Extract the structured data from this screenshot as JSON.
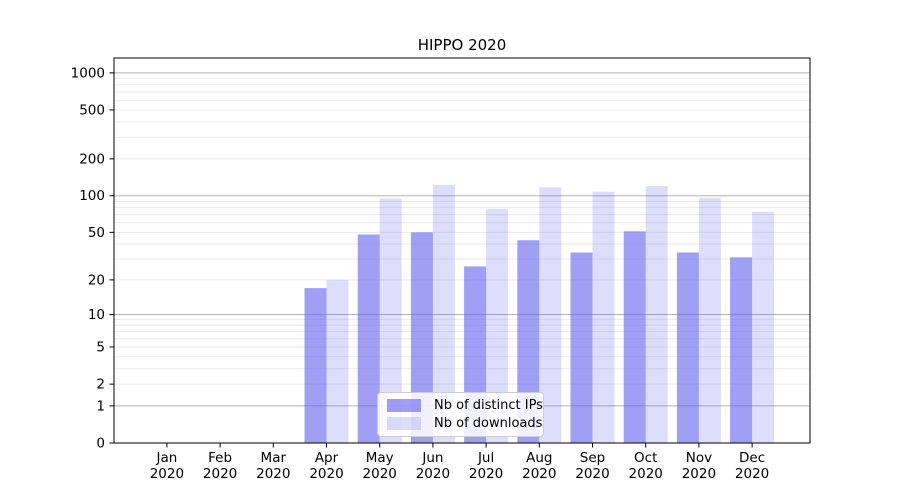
{
  "chart_data": {
    "type": "bar",
    "title": "HIPPO 2020",
    "year_label": "2020",
    "categories": [
      "Jan",
      "Feb",
      "Mar",
      "Apr",
      "May",
      "Jun",
      "Jul",
      "Aug",
      "Sep",
      "Oct",
      "Nov",
      "Dec"
    ],
    "series": [
      {
        "name": "Nb of distinct IPs",
        "color": "rgba(100,100,240,0.62)",
        "values": [
          0,
          0,
          0,
          17,
          48,
          50,
          26,
          43,
          34,
          51,
          34,
          31
        ]
      },
      {
        "name": "Nb of downloads",
        "color": "rgba(100,100,240,0.22)",
        "values": [
          0,
          0,
          0,
          20,
          95,
          123,
          78,
          117,
          108,
          120,
          96,
          74
        ]
      }
    ],
    "yscale": "symlog-base10",
    "yticks": [
      0,
      1,
      2,
      5,
      10,
      20,
      50,
      100,
      200,
      500,
      1000
    ],
    "ylim": [
      0,
      1320
    ],
    "grid": true,
    "legend_position": "lower-center-inside",
    "colors": {
      "grid_major": "#b3b3b3",
      "grid_minor": "#eaeaea",
      "spine": "#000000",
      "tick_text": "#000000"
    }
  }
}
